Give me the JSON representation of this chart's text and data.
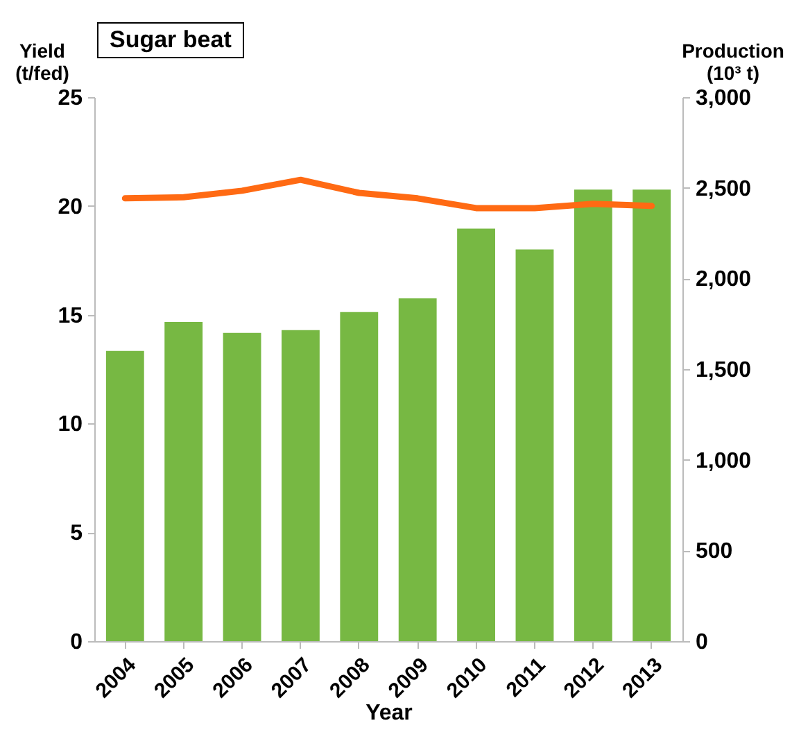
{
  "chart_data": {
    "type": "bar",
    "title": "Sugar beat",
    "xlabel": "Year",
    "ylabel": "Yield (t/fed)",
    "y2label": "Production (10³ t)",
    "categories": [
      "2004",
      "2005",
      "2006",
      "2007",
      "2008",
      "2009",
      "2010",
      "2011",
      "2012",
      "2013"
    ],
    "series": [
      {
        "axis": "y2",
        "color": "#77b843",
        "values": [
          1600,
          1760,
          1700,
          1715,
          1815,
          1890,
          2275,
          2160,
          2490,
          2490
        ]
      },
      {
        "type": "line",
        "axis": "y",
        "color": "#ff6a13",
        "values": [
          20.35,
          20.4,
          20.7,
          21.2,
          20.6,
          20.35,
          19.9,
          19.9,
          20.1,
          20.0
        ]
      }
    ],
    "ylim": [
      0,
      25
    ],
    "yticks": [
      0,
      5,
      10,
      15,
      20,
      25
    ],
    "y2lim": [
      0,
      3000
    ],
    "y2ticks": [
      0,
      {
        "value": 500,
        "label": "500"
      },
      {
        "value": 1000,
        "label": "1,000"
      },
      {
        "value": 1500,
        "label": "1,500"
      },
      {
        "value": 2000,
        "label": "2,000"
      },
      {
        "value": 2500,
        "label": "2,500"
      },
      {
        "value": 3000,
        "label": "3,000"
      }
    ],
    "grid": false
  }
}
